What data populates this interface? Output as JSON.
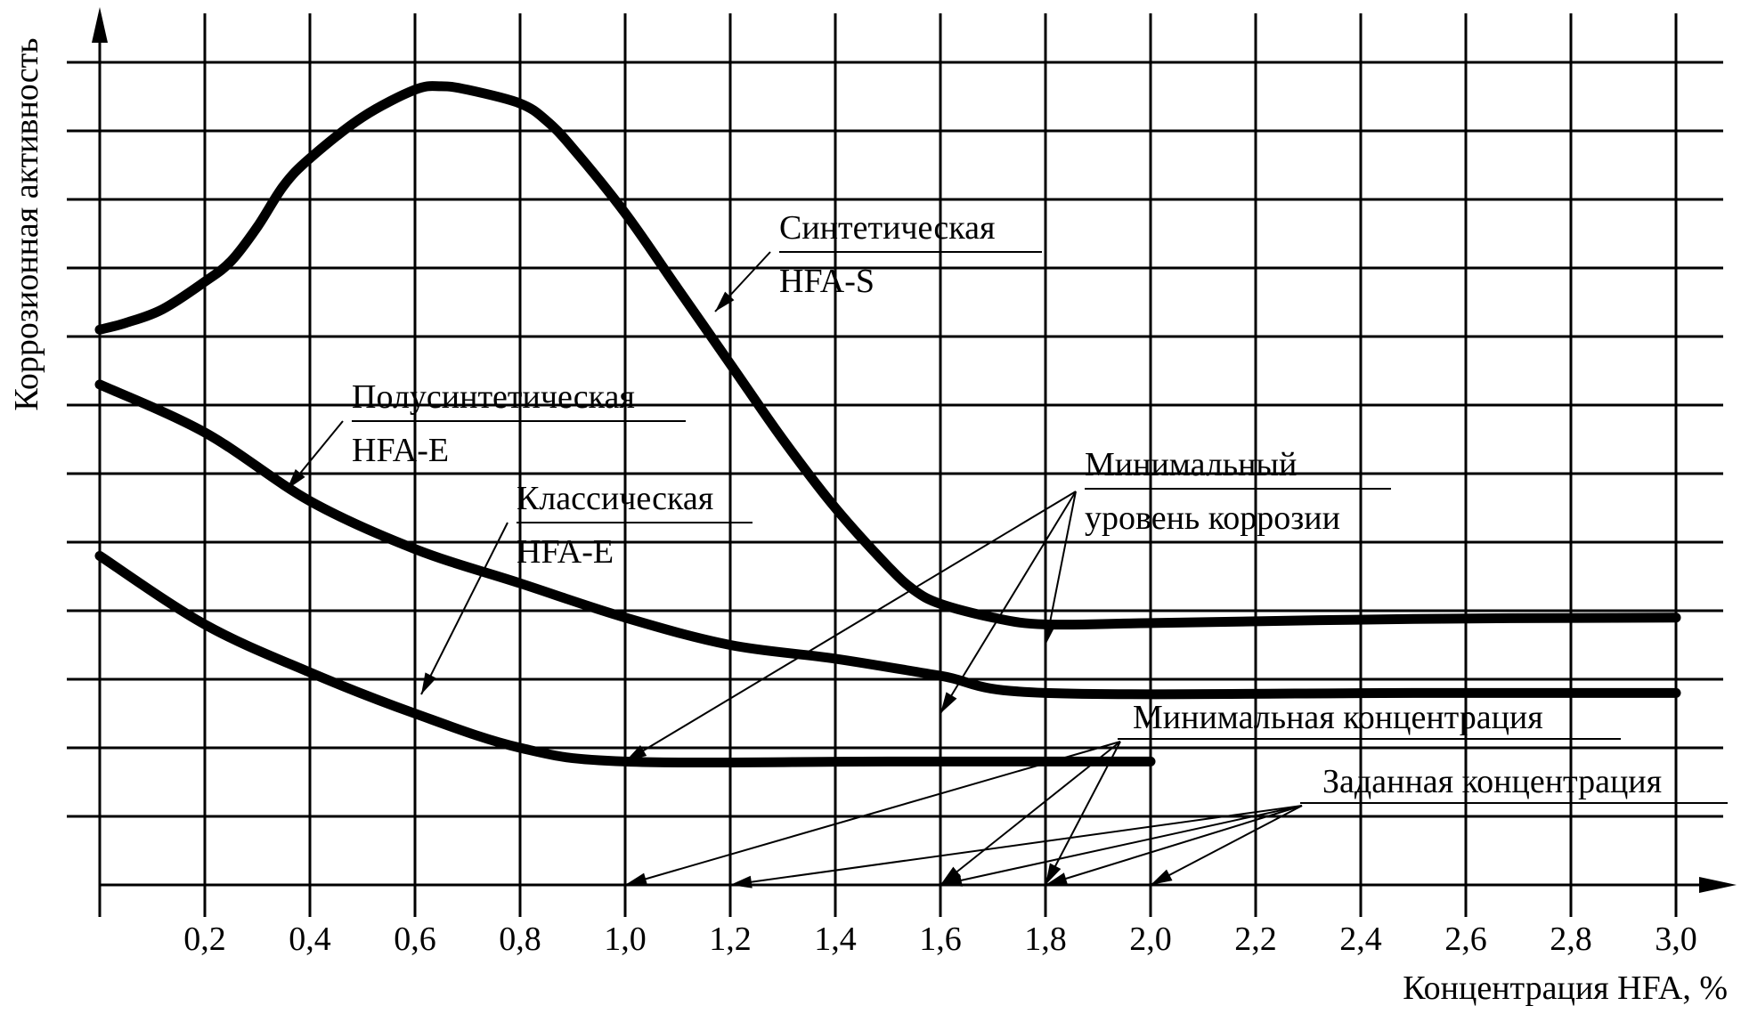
{
  "chart_data": {
    "type": "line",
    "xlabel": "Концентрация HFA, %",
    "ylabel": "Коррозионная активность",
    "xlim": [
      0,
      3.0
    ],
    "x_ticks": [
      "0,2",
      "0,4",
      "0,6",
      "0,8",
      "1,0",
      "1,2",
      "1,4",
      "1,6",
      "1,8",
      "2,0",
      "2,2",
      "2,4",
      "2,6",
      "2,8",
      "3,0"
    ],
    "grid": true,
    "series": [
      {
        "name": "Синтетическая HFA-S",
        "x": [
          0.0,
          0.05,
          0.12,
          0.2,
          0.25,
          0.3,
          0.35,
          0.4,
          0.5,
          0.6,
          0.65,
          0.7,
          0.8,
          0.85,
          0.9,
          1.0,
          1.1,
          1.2,
          1.3,
          1.4,
          1.5,
          1.55,
          1.6,
          1.7,
          1.8,
          2.0,
          2.5,
          3.0
        ],
        "y": [
          8.1,
          8.2,
          8.4,
          8.8,
          9.1,
          9.6,
          10.2,
          10.6,
          11.2,
          11.6,
          11.65,
          11.6,
          11.4,
          11.15,
          10.75,
          9.8,
          8.7,
          7.6,
          6.5,
          5.5,
          4.65,
          4.3,
          4.1,
          3.9,
          3.8,
          3.82,
          3.88,
          3.9
        ]
      },
      {
        "name": "Полусинтетическая HFA-E",
        "x": [
          0.0,
          0.2,
          0.4,
          0.6,
          0.8,
          1.0,
          1.2,
          1.4,
          1.6,
          1.8,
          2.5,
          3.0
        ],
        "y": [
          7.3,
          6.6,
          5.6,
          4.9,
          4.4,
          3.9,
          3.5,
          3.3,
          3.05,
          2.8,
          2.8,
          2.8
        ]
      },
      {
        "name": "Классическая HFA-E",
        "x": [
          0.0,
          0.2,
          0.4,
          0.6,
          0.8,
          1.0,
          1.5,
          2.0
        ],
        "y": [
          4.8,
          3.8,
          3.1,
          2.5,
          2.0,
          1.8,
          1.8,
          1.8
        ]
      }
    ],
    "annotations": [
      "Синтетическая",
      "HFA-S",
      "Полусинтетическая",
      "HFA-E",
      "Классическая",
      "HFA-E",
      "Минимальный",
      "уровень коррозии",
      "Минимальная концентрация",
      "Заданная концентрация"
    ],
    "minimal_corrosion_points_x": [
      1.0,
      1.6,
      1.8
    ],
    "minimal_concentration_x": [
      1.0,
      1.6,
      1.8
    ],
    "set_concentration_x": [
      1.2,
      1.6,
      1.8,
      2.0
    ]
  }
}
